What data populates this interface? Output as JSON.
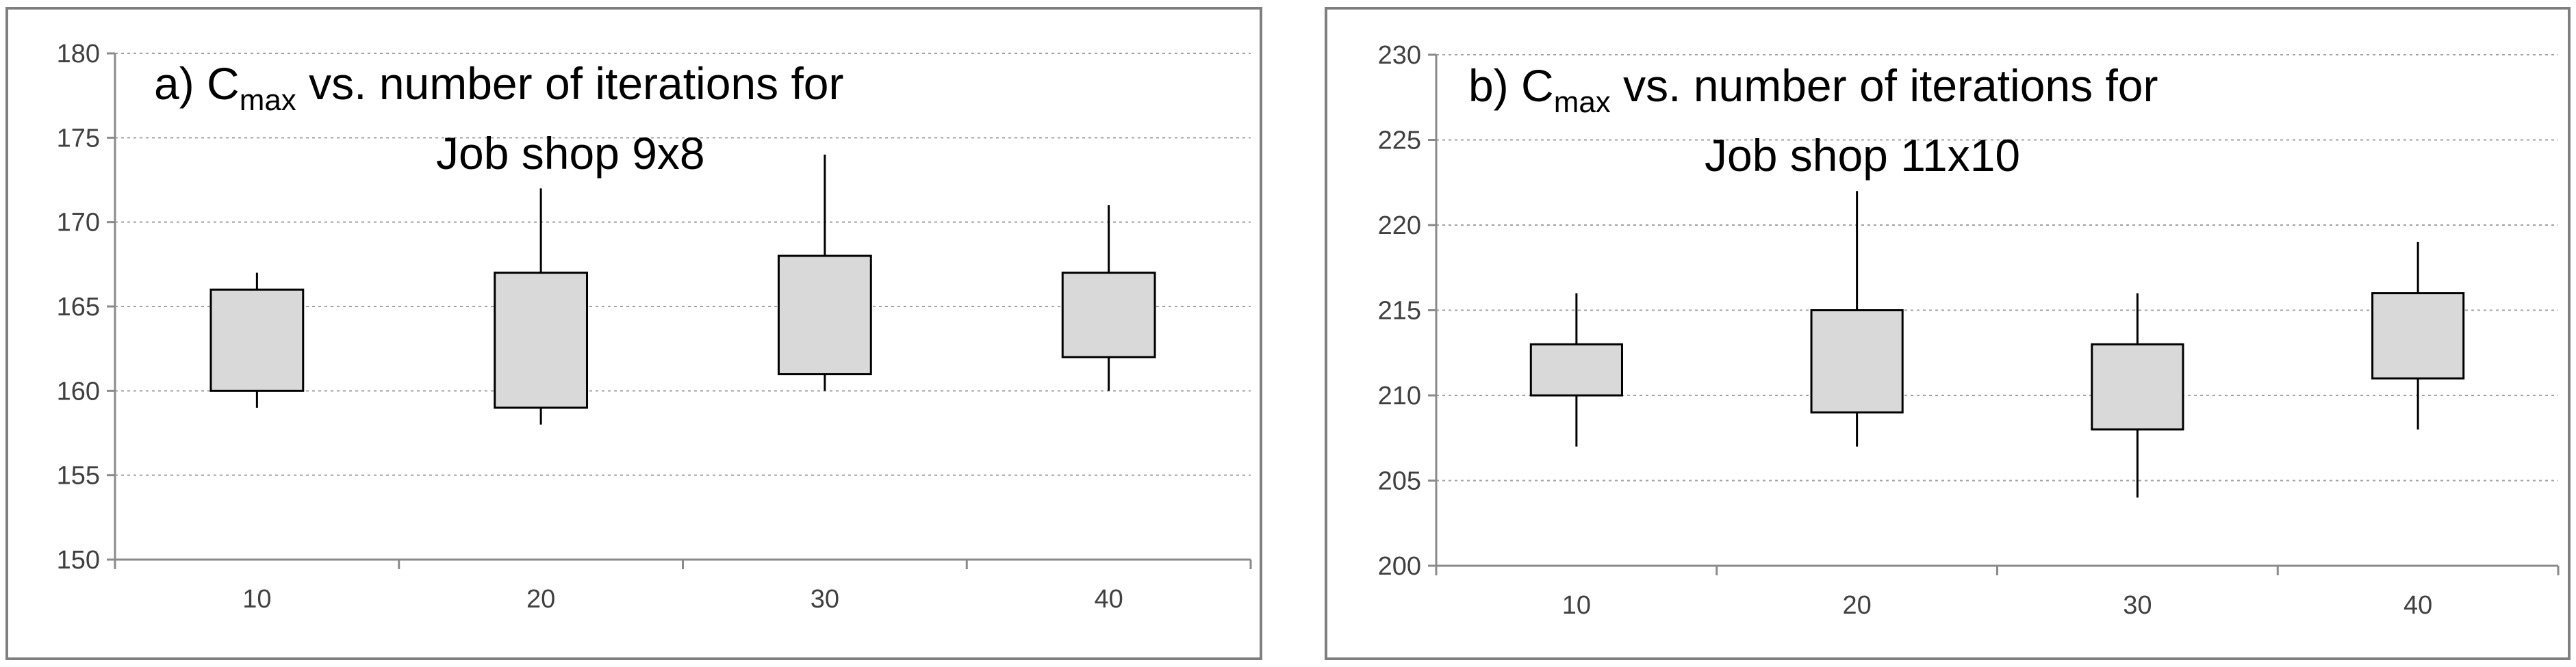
{
  "chart_data": [
    {
      "type": "box",
      "title": {
        "prefix": "a) C",
        "subscript": "max",
        "suffix": " vs. number of iterations for",
        "line2": "Job shop 9x8"
      },
      "xlabel": "",
      "ylabel": "",
      "categories": [
        "10",
        "20",
        "30",
        "40"
      ],
      "ylim": [
        150,
        180
      ],
      "yticks": [
        150,
        155,
        160,
        165,
        170,
        175,
        180
      ],
      "grid": true,
      "box_color": "#d9d9d9",
      "series": [
        {
          "min": 159,
          "q1": 160,
          "q3": 166,
          "max": 167
        },
        {
          "min": 158,
          "q1": 159,
          "q3": 167,
          "max": 172
        },
        {
          "min": 160,
          "q1": 161,
          "q3": 168,
          "max": 174
        },
        {
          "min": 160,
          "q1": 162,
          "q3": 167,
          "max": 171
        }
      ]
    },
    {
      "type": "box",
      "title": {
        "prefix": "b) C",
        "subscript": "max",
        "suffix": " vs. number of iterations for",
        "line2": "Job shop 11x10"
      },
      "xlabel": "",
      "ylabel": "",
      "categories": [
        "10",
        "20",
        "30",
        "40"
      ],
      "ylim": [
        200,
        230
      ],
      "yticks": [
        200,
        205,
        210,
        215,
        220,
        225,
        230
      ],
      "grid": true,
      "box_color": "#d9d9d9",
      "series": [
        {
          "min": 207,
          "q1": 210,
          "q3": 213,
          "max": 216
        },
        {
          "min": 207,
          "q1": 209,
          "q3": 215,
          "max": 222
        },
        {
          "min": 204,
          "q1": 208,
          "q3": 213,
          "max": 216
        },
        {
          "min": 208,
          "q1": 211,
          "q3": 216,
          "max": 219
        }
      ]
    }
  ]
}
